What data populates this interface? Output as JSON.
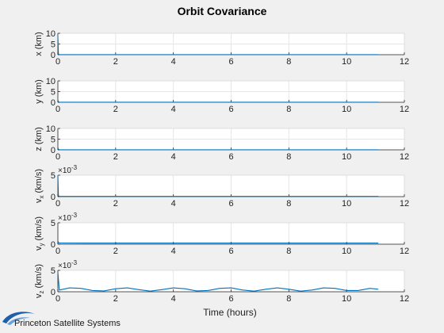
{
  "figure": {
    "title": "Orbit Covariance",
    "xlabel": "Time (hours)",
    "logo": "Princeton Satellite Systems",
    "colors": {
      "background": "#f0f0f0",
      "axes": "#ffffff",
      "line": "#0072bd",
      "grid": "#e6e6e6"
    }
  },
  "chart_data": [
    {
      "type": "line",
      "ylabel": "x (km)",
      "ylabel_main": "x",
      "ylabel_sub": "",
      "ylabel_unit": " (km)",
      "exponent": "",
      "xlim": [
        0,
        12
      ],
      "ylim": [
        0,
        10
      ],
      "xticks": [
        0,
        2,
        4,
        6,
        8,
        10,
        12
      ],
      "yticks": [
        0,
        5,
        10
      ],
      "grid": true,
      "series": [
        {
          "x": [
            0,
            0.02,
            0.05,
            1,
            2,
            4,
            6,
            8,
            10,
            11.1
          ],
          "values": [
            8.5,
            0.3,
            0.08,
            0.05,
            0.05,
            0.05,
            0.05,
            0.05,
            0.05,
            0.05
          ]
        }
      ]
    },
    {
      "type": "line",
      "ylabel": "y (km)",
      "ylabel_main": "y",
      "ylabel_sub": "",
      "ylabel_unit": " (km)",
      "exponent": "",
      "xlim": [
        0,
        12
      ],
      "ylim": [
        0,
        10
      ],
      "xticks": [
        0,
        2,
        4,
        6,
        8,
        10,
        12
      ],
      "yticks": [
        0,
        5,
        10
      ],
      "grid": true,
      "series": [
        {
          "x": [
            0,
            0.02,
            0.05,
            1,
            2,
            4,
            6,
            8,
            10,
            11.1
          ],
          "values": [
            1.0,
            0.3,
            0.08,
            0.05,
            0.05,
            0.05,
            0.05,
            0.05,
            0.05,
            0.05
          ]
        }
      ]
    },
    {
      "type": "line",
      "ylabel": "z (km)",
      "ylabel_main": "z",
      "ylabel_sub": "",
      "ylabel_unit": " (km)",
      "exponent": "",
      "xlim": [
        0,
        12
      ],
      "ylim": [
        0,
        10
      ],
      "xticks": [
        0,
        2,
        4,
        6,
        8,
        10,
        12
      ],
      "yticks": [
        0,
        5,
        10
      ],
      "grid": true,
      "series": [
        {
          "x": [
            0,
            0.02,
            0.05,
            1,
            2,
            4,
            6,
            8,
            10,
            11.1
          ],
          "values": [
            1.0,
            0.3,
            0.08,
            0.05,
            0.05,
            0.05,
            0.05,
            0.05,
            0.05,
            0.05
          ]
        }
      ]
    },
    {
      "type": "line",
      "ylabel": "vx (km/s)",
      "ylabel_main": "v",
      "ylabel_sub": "x",
      "ylabel_unit": " (km/s)",
      "exponent": "-3",
      "xlim": [
        0,
        12
      ],
      "ylim": [
        0,
        5
      ],
      "xticks": [
        0,
        2,
        4,
        6,
        8,
        10,
        12
      ],
      "yticks": [
        0,
        5
      ],
      "grid": true,
      "series": [
        {
          "x": [
            0,
            0.02,
            0.05,
            1,
            2,
            4,
            6,
            8,
            10,
            11.1
          ],
          "values": [
            5.0,
            0.2,
            0.08,
            0.06,
            0.06,
            0.06,
            0.06,
            0.06,
            0.06,
            0.06
          ]
        }
      ]
    },
    {
      "type": "line",
      "ylabel": "vy (km/s)",
      "ylabel_main": "v",
      "ylabel_sub": "y",
      "ylabel_unit": " (km/s)",
      "exponent": "-3",
      "xlim": [
        0,
        12
      ],
      "ylim": [
        0,
        5
      ],
      "xticks": [
        0,
        2,
        4,
        6,
        8,
        10,
        12
      ],
      "yticks": [
        0,
        5
      ],
      "grid": true,
      "series": [
        {
          "x": [
            0,
            0.02,
            0.05,
            1,
            2,
            4,
            6,
            8,
            10,
            11.1
          ],
          "values": [
            0.8,
            0.4,
            0.3,
            0.25,
            0.25,
            0.25,
            0.25,
            0.25,
            0.25,
            0.25
          ]
        }
      ]
    },
    {
      "type": "line",
      "ylabel": "vz (km/s)",
      "ylabel_main": "v",
      "ylabel_sub": "z",
      "ylabel_unit": " (km/s)",
      "exponent": "-3",
      "xlim": [
        0,
        12
      ],
      "ylim": [
        0,
        5
      ],
      "xticks": [
        0,
        2,
        4,
        6,
        8,
        10,
        12
      ],
      "yticks": [
        0,
        5
      ],
      "grid": true,
      "series": [
        {
          "x": [
            0,
            0.05,
            0.4,
            0.8,
            1.2,
            1.6,
            2.0,
            2.4,
            2.8,
            3.2,
            3.6,
            4.0,
            4.4,
            4.8,
            5.2,
            5.6,
            6.0,
            6.4,
            6.8,
            7.2,
            7.6,
            8.0,
            8.4,
            8.8,
            9.2,
            9.6,
            10.0,
            10.4,
            10.8,
            11.1
          ],
          "values": [
            4.5,
            0.4,
            0.9,
            0.8,
            0.3,
            0.2,
            0.7,
            0.9,
            0.5,
            0.15,
            0.5,
            0.9,
            0.7,
            0.2,
            0.3,
            0.8,
            0.9,
            0.4,
            0.15,
            0.6,
            0.9,
            0.6,
            0.15,
            0.4,
            0.9,
            0.8,
            0.3,
            0.3,
            0.8,
            0.6
          ]
        }
      ]
    }
  ]
}
